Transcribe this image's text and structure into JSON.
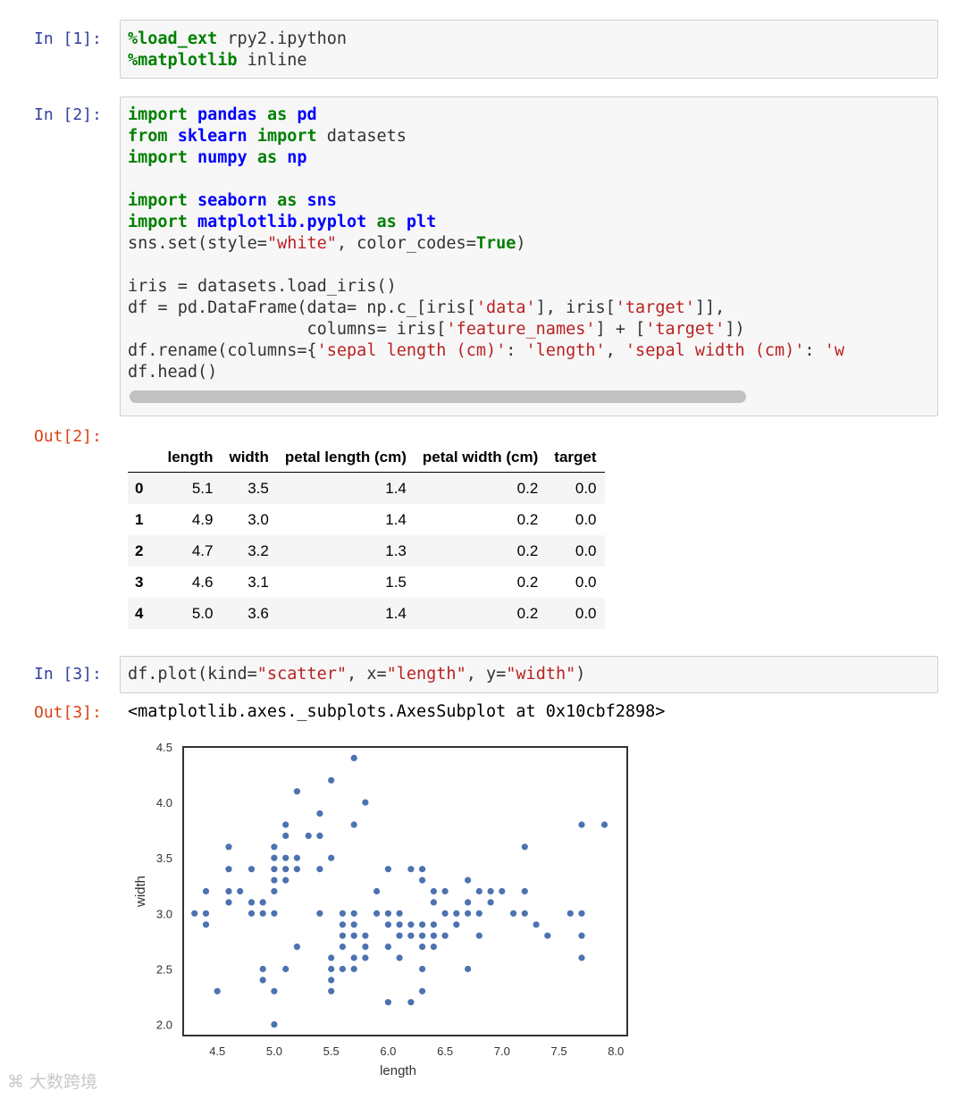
{
  "cells": [
    {
      "prompt": "In [1]:",
      "lines": [
        [
          [
            "%",
            "mg"
          ],
          [
            "load_ext",
            "mg"
          ],
          [
            " rpy2.ipython",
            ""
          ]
        ],
        [
          [
            "%",
            "mg"
          ],
          [
            "matplotlib",
            "mg"
          ],
          [
            " inline",
            ""
          ]
        ]
      ]
    },
    {
      "prompt": "In [2]:",
      "lines": [
        [
          [
            "import",
            "kw"
          ],
          [
            " ",
            ""
          ],
          [
            "pandas",
            "nm"
          ],
          [
            " ",
            ""
          ],
          [
            "as",
            "kw"
          ],
          [
            " ",
            ""
          ],
          [
            "pd",
            "nm"
          ]
        ],
        [
          [
            "from",
            "kw"
          ],
          [
            " ",
            ""
          ],
          [
            "sklearn",
            "nm"
          ],
          [
            " ",
            ""
          ],
          [
            "import",
            "kw"
          ],
          [
            " datasets",
            ""
          ]
        ],
        [
          [
            "import",
            "kw"
          ],
          [
            " ",
            ""
          ],
          [
            "numpy",
            "nm"
          ],
          [
            " ",
            ""
          ],
          [
            "as",
            "kw"
          ],
          [
            " ",
            ""
          ],
          [
            "np",
            "nm"
          ]
        ],
        [],
        [
          [
            "import",
            "kw"
          ],
          [
            " ",
            ""
          ],
          [
            "seaborn",
            "nm"
          ],
          [
            " ",
            ""
          ],
          [
            "as",
            "kw"
          ],
          [
            " ",
            ""
          ],
          [
            "sns",
            "nm"
          ]
        ],
        [
          [
            "import",
            "kw"
          ],
          [
            " ",
            ""
          ],
          [
            "matplotlib.pyplot",
            "nm"
          ],
          [
            " ",
            ""
          ],
          [
            "as",
            "kw"
          ],
          [
            " ",
            ""
          ],
          [
            "plt",
            "nm"
          ]
        ],
        [
          [
            "sns.set(style=",
            ""
          ],
          [
            "\"white\"",
            "st"
          ],
          [
            ", color_codes=",
            ""
          ],
          [
            "True",
            "kw"
          ],
          [
            ")",
            ""
          ]
        ],
        [],
        [
          [
            "iris = datasets.load_iris()",
            ""
          ]
        ],
        [
          [
            "df = pd.DataFrame(data= np.c_[iris[",
            ""
          ],
          [
            "'data'",
            "st"
          ],
          [
            "], iris[",
            ""
          ],
          [
            "'target'",
            "st"
          ],
          [
            "]],",
            ""
          ]
        ],
        [
          [
            "                  columns= iris[",
            ""
          ],
          [
            "'feature_names'",
            "st"
          ],
          [
            "] + [",
            ""
          ],
          [
            "'target'",
            "st"
          ],
          [
            "])",
            ""
          ]
        ],
        [
          [
            "df.rename(columns={",
            ""
          ],
          [
            "'sepal length (cm)'",
            "st"
          ],
          [
            ": ",
            ""
          ],
          [
            "'length'",
            "st"
          ],
          [
            ", ",
            ""
          ],
          [
            "'sepal width (cm)'",
            "st"
          ],
          [
            ": ",
            ""
          ],
          [
            "'w",
            "st"
          ]
        ],
        [
          [
            "df.head()",
            ""
          ]
        ]
      ]
    },
    {
      "prompt": "In [3]:",
      "lines": [
        [
          [
            "df.plot(kind=",
            ""
          ],
          [
            "\"scatter\"",
            "st"
          ],
          [
            ", x=",
            ""
          ],
          [
            "\"length\"",
            "st"
          ],
          [
            ", y=",
            ""
          ],
          [
            "\"width\"",
            "st"
          ],
          [
            ")",
            ""
          ]
        ]
      ]
    }
  ],
  "outputs": {
    "out2_prompt": "Out[2]:",
    "out3_prompt": "Out[3]:",
    "out3_text": "<matplotlib.axes._subplots.AxesSubplot at 0x10cbf2898>"
  },
  "table": {
    "columns": [
      "",
      "length",
      "width",
      "petal length (cm)",
      "petal width (cm)",
      "target"
    ],
    "rows": [
      [
        "0",
        "5.1",
        "3.5",
        "1.4",
        "0.2",
        "0.0"
      ],
      [
        "1",
        "4.9",
        "3.0",
        "1.4",
        "0.2",
        "0.0"
      ],
      [
        "2",
        "4.7",
        "3.2",
        "1.3",
        "0.2",
        "0.0"
      ],
      [
        "3",
        "4.6",
        "3.1",
        "1.5",
        "0.2",
        "0.0"
      ],
      [
        "4",
        "5.0",
        "3.6",
        "1.4",
        "0.2",
        "0.0"
      ]
    ]
  },
  "chart_data": {
    "type": "scatter",
    "xlabel": "length",
    "ylabel": "width",
    "xlim": [
      4.2,
      8.1
    ],
    "ylim": [
      1.9,
      4.5
    ],
    "xticks": [
      "4.5",
      "5.0",
      "5.5",
      "6.0",
      "6.5",
      "7.0",
      "7.5",
      "8.0"
    ],
    "yticks": [
      "2.0",
      "2.5",
      "3.0",
      "3.5",
      "4.0",
      "4.5"
    ],
    "grid": false,
    "color": "#4c72b0",
    "points": [
      [
        4.3,
        3.0
      ],
      [
        4.4,
        2.9
      ],
      [
        4.4,
        3.0
      ],
      [
        4.4,
        3.2
      ],
      [
        4.5,
        2.3
      ],
      [
        4.6,
        3.1
      ],
      [
        4.6,
        3.2
      ],
      [
        4.6,
        3.4
      ],
      [
        4.6,
        3.6
      ],
      [
        4.7,
        3.2
      ],
      [
        4.8,
        3.0
      ],
      [
        4.8,
        3.1
      ],
      [
        4.8,
        3.4
      ],
      [
        4.9,
        2.4
      ],
      [
        4.9,
        2.5
      ],
      [
        4.9,
        3.0
      ],
      [
        4.9,
        3.1
      ],
      [
        5.0,
        2.0
      ],
      [
        5.0,
        2.3
      ],
      [
        5.0,
        3.0
      ],
      [
        5.0,
        3.2
      ],
      [
        5.0,
        3.3
      ],
      [
        5.0,
        3.4
      ],
      [
        5.0,
        3.5
      ],
      [
        5.0,
        3.6
      ],
      [
        5.1,
        2.5
      ],
      [
        5.1,
        3.3
      ],
      [
        5.1,
        3.4
      ],
      [
        5.1,
        3.5
      ],
      [
        5.1,
        3.7
      ],
      [
        5.1,
        3.8
      ],
      [
        5.2,
        2.7
      ],
      [
        5.2,
        3.4
      ],
      [
        5.2,
        3.5
      ],
      [
        5.2,
        4.1
      ],
      [
        5.3,
        3.7
      ],
      [
        5.4,
        3.0
      ],
      [
        5.4,
        3.4
      ],
      [
        5.4,
        3.7
      ],
      [
        5.4,
        3.9
      ],
      [
        5.5,
        2.3
      ],
      [
        5.5,
        2.4
      ],
      [
        5.5,
        2.5
      ],
      [
        5.5,
        2.6
      ],
      [
        5.5,
        3.5
      ],
      [
        5.5,
        4.2
      ],
      [
        5.6,
        2.5
      ],
      [
        5.6,
        2.7
      ],
      [
        5.6,
        2.8
      ],
      [
        5.6,
        2.9
      ],
      [
        5.6,
        3.0
      ],
      [
        5.7,
        2.5
      ],
      [
        5.7,
        2.6
      ],
      [
        5.7,
        2.8
      ],
      [
        5.7,
        2.9
      ],
      [
        5.7,
        3.0
      ],
      [
        5.7,
        3.8
      ],
      [
        5.7,
        4.4
      ],
      [
        5.8,
        2.6
      ],
      [
        5.8,
        2.7
      ],
      [
        5.8,
        2.8
      ],
      [
        5.8,
        4.0
      ],
      [
        5.9,
        3.0
      ],
      [
        5.9,
        3.2
      ],
      [
        6.0,
        2.2
      ],
      [
        6.0,
        2.7
      ],
      [
        6.0,
        2.9
      ],
      [
        6.0,
        3.0
      ],
      [
        6.0,
        3.4
      ],
      [
        6.1,
        2.6
      ],
      [
        6.1,
        2.8
      ],
      [
        6.1,
        2.9
      ],
      [
        6.1,
        3.0
      ],
      [
        6.2,
        2.2
      ],
      [
        6.2,
        2.8
      ],
      [
        6.2,
        2.9
      ],
      [
        6.2,
        3.4
      ],
      [
        6.3,
        2.3
      ],
      [
        6.3,
        2.5
      ],
      [
        6.3,
        2.7
      ],
      [
        6.3,
        2.8
      ],
      [
        6.3,
        2.9
      ],
      [
        6.3,
        3.3
      ],
      [
        6.3,
        3.4
      ],
      [
        6.4,
        2.7
      ],
      [
        6.4,
        2.8
      ],
      [
        6.4,
        2.9
      ],
      [
        6.4,
        3.1
      ],
      [
        6.4,
        3.2
      ],
      [
        6.5,
        2.8
      ],
      [
        6.5,
        3.0
      ],
      [
        6.5,
        3.2
      ],
      [
        6.6,
        2.9
      ],
      [
        6.6,
        3.0
      ],
      [
        6.7,
        2.5
      ],
      [
        6.7,
        3.0
      ],
      [
        6.7,
        3.1
      ],
      [
        6.7,
        3.3
      ],
      [
        6.8,
        2.8
      ],
      [
        6.8,
        3.0
      ],
      [
        6.8,
        3.2
      ],
      [
        6.9,
        3.1
      ],
      [
        6.9,
        3.2
      ],
      [
        7.0,
        3.2
      ],
      [
        7.1,
        3.0
      ],
      [
        7.2,
        3.0
      ],
      [
        7.2,
        3.2
      ],
      [
        7.2,
        3.6
      ],
      [
        7.3,
        2.9
      ],
      [
        7.4,
        2.8
      ],
      [
        7.6,
        3.0
      ],
      [
        7.7,
        2.6
      ],
      [
        7.7,
        2.8
      ],
      [
        7.7,
        3.0
      ],
      [
        7.7,
        3.8
      ],
      [
        7.9,
        3.8
      ]
    ]
  },
  "watermark": "大数跨境"
}
